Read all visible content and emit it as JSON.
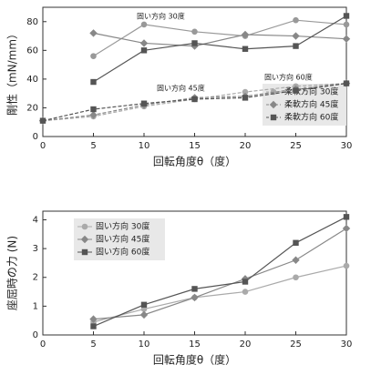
{
  "chart_data": [
    {
      "type": "line",
      "x": [
        0,
        5,
        10,
        15,
        20,
        25,
        30
      ],
      "xlim": [
        0,
        30
      ],
      "xticks": [
        0,
        5,
        10,
        15,
        20,
        25,
        30
      ],
      "ylim": [
        0,
        90
      ],
      "yticks": [
        0,
        20,
        40,
        60,
        80
      ],
      "xlabel": "回転角度θ（度）",
      "ylabel": "剛性（mN/mm）",
      "legend": "lower right",
      "series": [
        {
          "name": "固い方向 30度",
          "color": "#999999",
          "marker": "circle",
          "dashed": false,
          "values": [
            null,
            56,
            78,
            73,
            70,
            81,
            78
          ]
        },
        {
          "name": "固い方向 45度",
          "color": "#888888",
          "marker": "diamond",
          "dashed": false,
          "values": [
            null,
            72,
            65,
            63,
            71,
            70,
            68
          ]
        },
        {
          "name": "固い方向 60度",
          "color": "#555555",
          "marker": "square",
          "dashed": false,
          "values": [
            null,
            38,
            60,
            65,
            61,
            63,
            84
          ]
        },
        {
          "name": "柔軟方向 30度",
          "color": "#aaaaaa",
          "marker": "circle",
          "dashed": true,
          "values": [
            11,
            14,
            21,
            26,
            31,
            35,
            37
          ]
        },
        {
          "name": "柔軟方向 45度",
          "color": "#888888",
          "marker": "diamond",
          "dashed": true,
          "values": [
            11,
            15,
            22,
            27,
            28,
            33,
            37
          ]
        },
        {
          "name": "柔軟方向 60度",
          "color": "#555555",
          "marker": "square",
          "dashed": true,
          "values": [
            11,
            19,
            23,
            26,
            27,
            32,
            37
          ]
        }
      ]
    },
    {
      "type": "line",
      "x": [
        5,
        10,
        15,
        20,
        25,
        30
      ],
      "xlim": [
        0,
        30
      ],
      "xticks": [
        0,
        5,
        10,
        15,
        20,
        25,
        30
      ],
      "ylim": [
        0,
        4.3
      ],
      "yticks": [
        0,
        1,
        2,
        3,
        4
      ],
      "xlabel": "回転角度θ（度）",
      "ylabel": "座屈時の力 (N)",
      "legend": "upper left",
      "series": [
        {
          "name": "固い方向 30度",
          "color": "#aaaaaa",
          "marker": "circle",
          "dashed": false,
          "values": [
            0.45,
            0.9,
            1.3,
            1.5,
            2.0,
            2.4
          ]
        },
        {
          "name": "固い方向 45度",
          "color": "#888888",
          "marker": "diamond",
          "dashed": false,
          "values": [
            0.55,
            0.7,
            1.3,
            1.95,
            2.6,
            3.7
          ]
        },
        {
          "name": "固い方向 60度",
          "color": "#555555",
          "marker": "square",
          "dashed": false,
          "values": [
            0.3,
            1.05,
            1.6,
            1.85,
            3.2,
            4.1
          ]
        }
      ]
    }
  ]
}
